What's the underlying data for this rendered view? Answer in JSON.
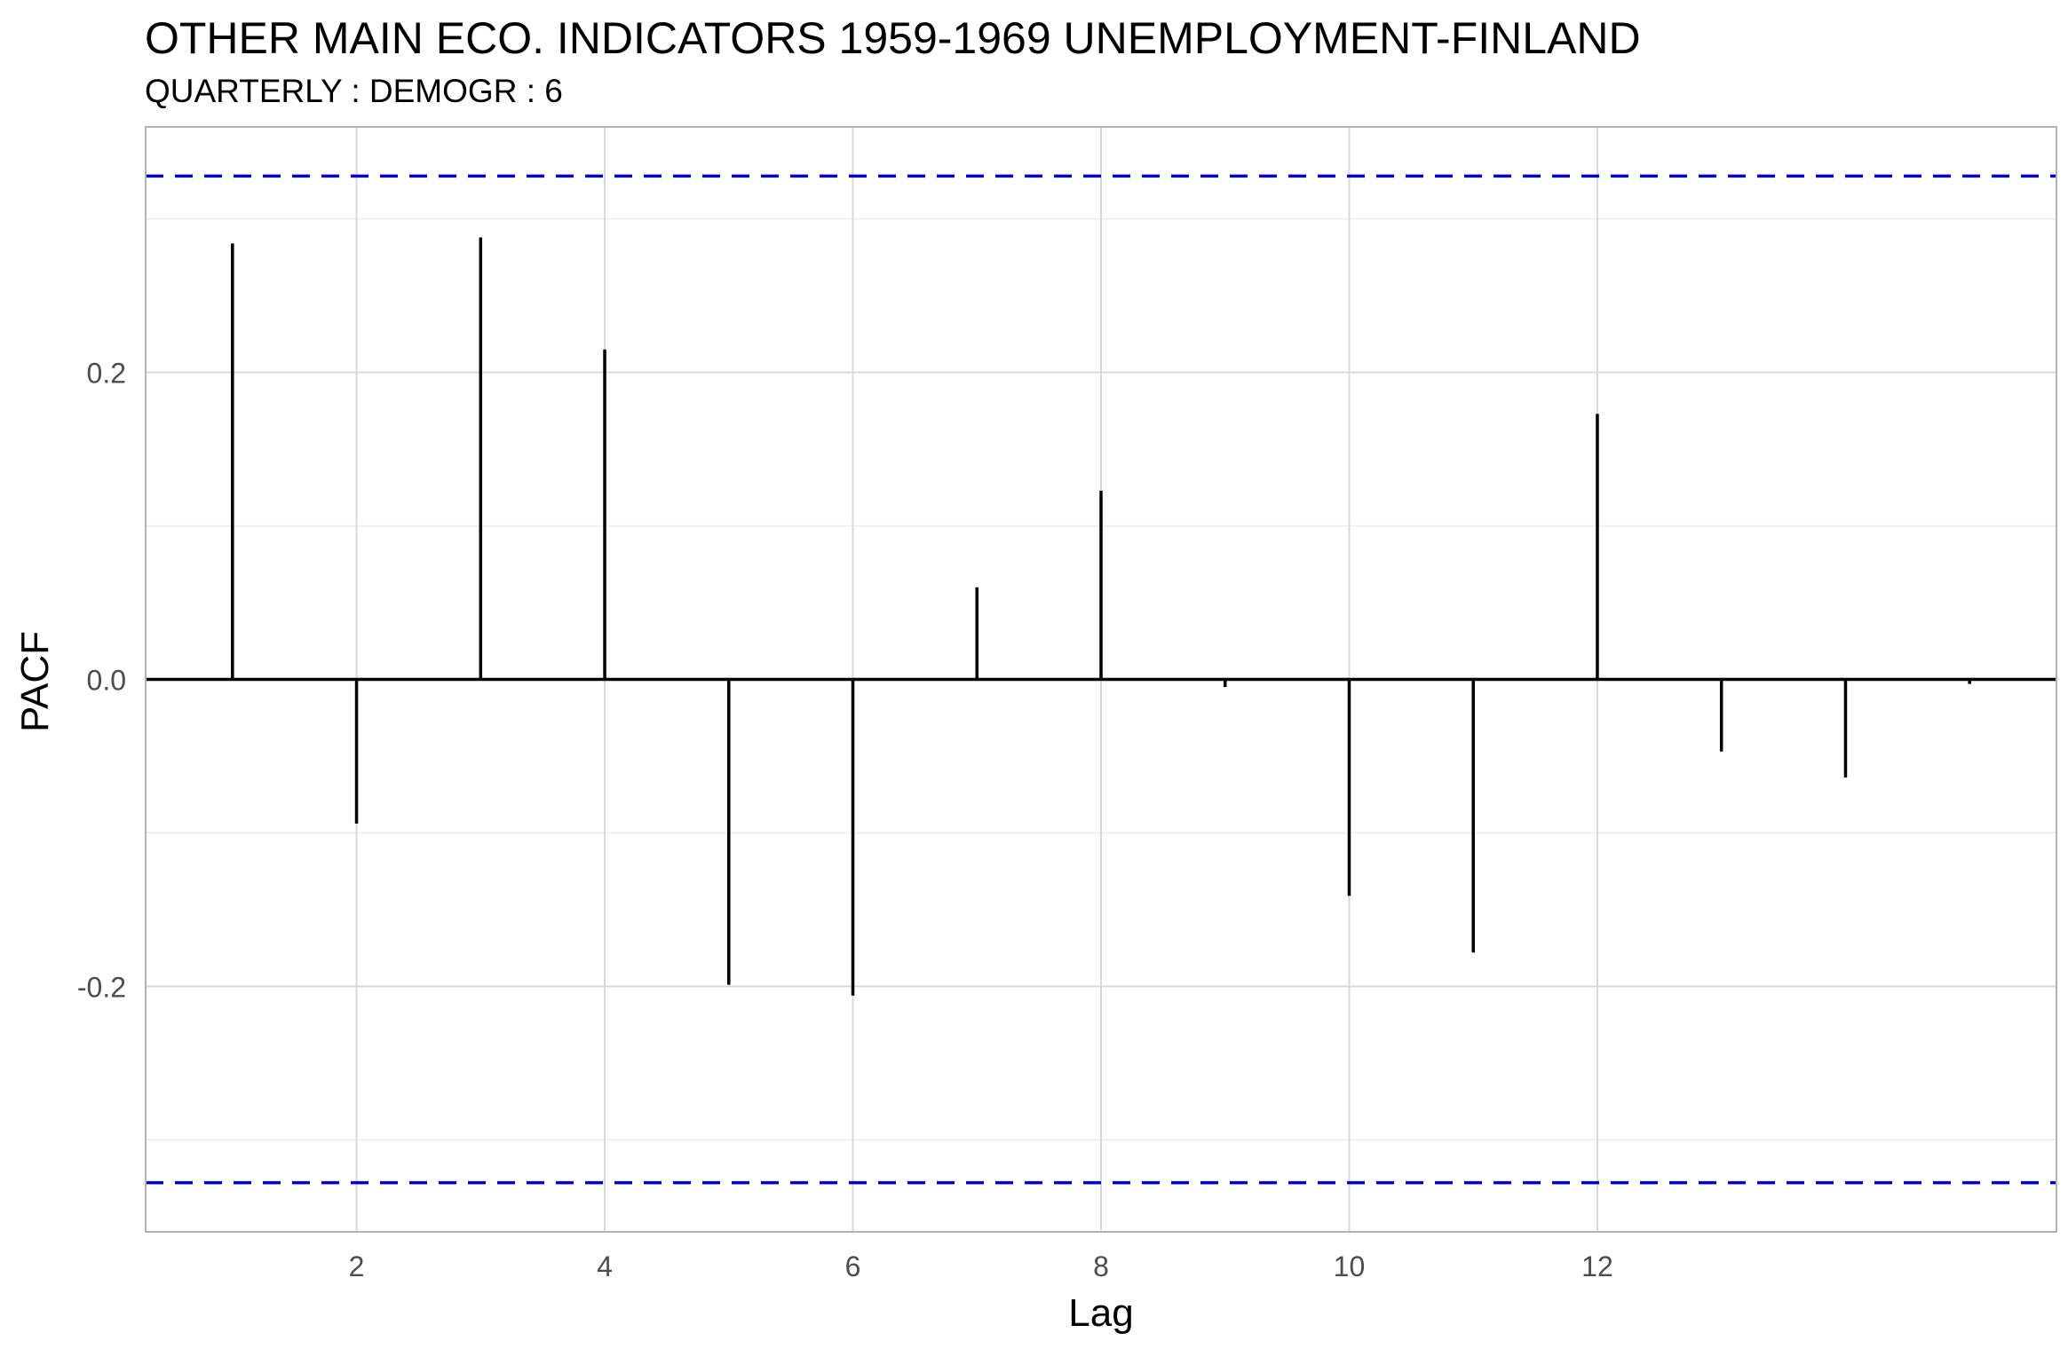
{
  "chart_data": {
    "type": "bar",
    "title": "OTHER MAIN ECO. INDICATORS 1959-1969 UNEMPLOYMENT-FINLAND",
    "subtitle": "QUARTERLY : DEMOGR : 6",
    "xlabel": "Lag",
    "ylabel": "PACF",
    "x": [
      1,
      2,
      3,
      4,
      5,
      6,
      7,
      8,
      9,
      10,
      11,
      12,
      13,
      14,
      15
    ],
    "values": [
      0.284,
      -0.094,
      0.288,
      0.215,
      -0.199,
      -0.206,
      0.06,
      0.123,
      -0.005,
      -0.141,
      -0.178,
      0.173,
      -0.047,
      -0.064,
      -0.003
    ],
    "confidence_bound": 0.328,
    "xlim": [
      0.3,
      15.7
    ],
    "ylim": [
      -0.36,
      0.36
    ],
    "x_ticks": [
      2,
      4,
      6,
      8,
      10,
      12
    ],
    "x_tick_labels": [
      "2",
      "4",
      "6",
      "8",
      "10",
      "12"
    ],
    "y_ticks": [
      -0.2,
      0.0,
      0.2
    ],
    "y_tick_labels": [
      "-0.2",
      "0.0",
      "0.2"
    ],
    "grid": true,
    "legend": "none",
    "colors": {
      "bars": "#000000",
      "confidence": "#0000cc",
      "grid_major": "#d9d9d9",
      "grid_minor": "#ececec",
      "panel_border": "#b3b3b3",
      "tick_text": "#4d4d4d"
    }
  }
}
